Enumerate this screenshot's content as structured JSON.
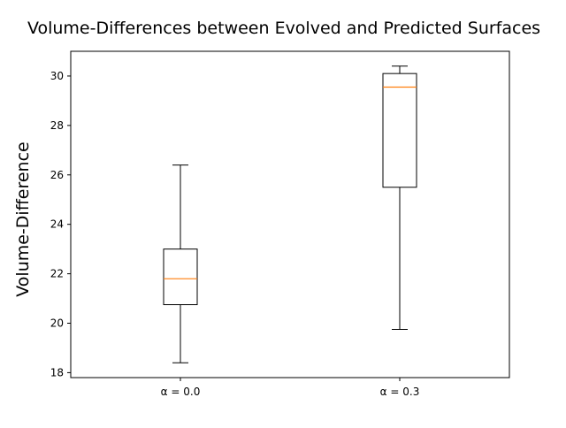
{
  "chart_data": {
    "type": "boxplot",
    "title": "Volume-Differences between Evolved and Predicted Surfaces",
    "xlabel": "",
    "ylabel": "Volume-Difference",
    "categories": [
      "α = 0.0",
      "α = 0.3"
    ],
    "ylim": [
      17.8,
      31.0
    ],
    "yticks": [
      18,
      20,
      22,
      24,
      26,
      28,
      30
    ],
    "grid": false,
    "boxes": [
      {
        "category": "α = 0.0",
        "whisker_low": 18.4,
        "q1": 20.75,
        "median": 21.8,
        "q3": 23.0,
        "whisker_high": 26.4
      },
      {
        "category": "α = 0.3",
        "whisker_low": 19.75,
        "q1": 25.5,
        "median": 29.55,
        "q3": 30.1,
        "whisker_high": 30.4
      }
    ],
    "colors": {
      "box": "#000000",
      "median": "#ff7f0e",
      "whisker": "#000000"
    }
  }
}
